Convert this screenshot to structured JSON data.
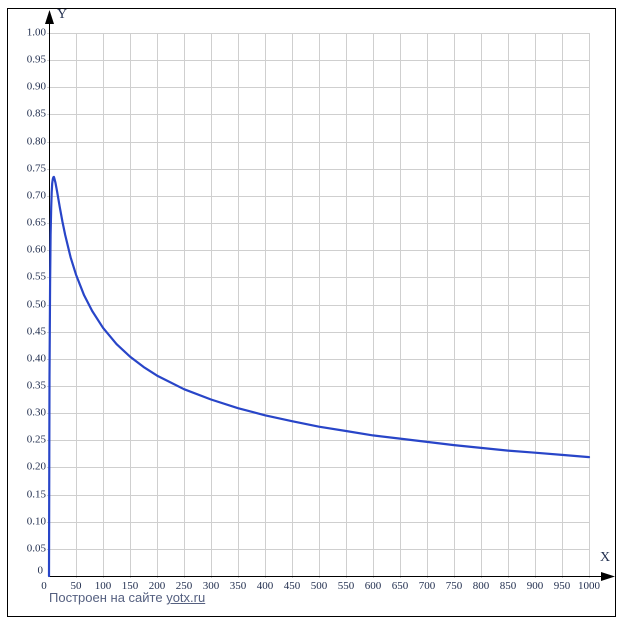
{
  "colors": {
    "background": "#ffffff",
    "frame_border": "#000000",
    "grid": "#cfcfcf",
    "axis": "#000000",
    "tick_text": "#233050",
    "curve": "#2845c8",
    "footer_text": "#556080",
    "footer_link": "#556080"
  },
  "chart_data": {
    "type": "line",
    "title": "",
    "grid": true,
    "x_axis": {
      "label": "X",
      "min": 0,
      "max": 1000,
      "grid_step": 50,
      "ticks": [
        {
          "v": 0,
          "label": "0"
        },
        {
          "v": 50,
          "label": "50"
        },
        {
          "v": 100,
          "label": "100"
        },
        {
          "v": 150,
          "label": "150"
        },
        {
          "v": 200,
          "label": "200"
        },
        {
          "v": 250,
          "label": "250"
        },
        {
          "v": 300,
          "label": "300"
        },
        {
          "v": 350,
          "label": "350"
        },
        {
          "v": 400,
          "label": "400"
        },
        {
          "v": 450,
          "label": "450"
        },
        {
          "v": 500,
          "label": "500"
        },
        {
          "v": 550,
          "label": "550"
        },
        {
          "v": 600,
          "label": "600"
        },
        {
          "v": 650,
          "label": "650"
        },
        {
          "v": 700,
          "label": "700"
        },
        {
          "v": 750,
          "label": "750"
        },
        {
          "v": 800,
          "label": "800"
        },
        {
          "v": 850,
          "label": "850"
        },
        {
          "v": 900,
          "label": "900"
        },
        {
          "v": 950,
          "label": "950"
        },
        {
          "v": 1000,
          "label": "1000"
        }
      ]
    },
    "y_axis": {
      "label": "Y",
      "min": 0,
      "max": 1.0,
      "grid_step": 0.05,
      "ticks": [
        {
          "v": 1.0,
          "label": "1.00"
        },
        {
          "v": 0.95,
          "label": "0.95"
        },
        {
          "v": 0.9,
          "label": "0.90"
        },
        {
          "v": 0.85,
          "label": "0.85"
        },
        {
          "v": 0.8,
          "label": "0.80"
        },
        {
          "v": 0.75,
          "label": "0.75"
        },
        {
          "v": 0.7,
          "label": "0.70"
        },
        {
          "v": 0.65,
          "label": "0.65"
        },
        {
          "v": 0.6,
          "label": "0.60"
        },
        {
          "v": 0.55,
          "label": "0.55"
        },
        {
          "v": 0.5,
          "label": "0.50"
        },
        {
          "v": 0.45,
          "label": "0.45"
        },
        {
          "v": 0.4,
          "label": "0.40"
        },
        {
          "v": 0.35,
          "label": "0.35"
        },
        {
          "v": 0.3,
          "label": "0.30"
        },
        {
          "v": 0.25,
          "label": "0.25"
        },
        {
          "v": 0.2,
          "label": "0.20"
        },
        {
          "v": 0.15,
          "label": "0.15"
        },
        {
          "v": 0.1,
          "label": "0.10"
        },
        {
          "v": 0.05,
          "label": "0.05"
        },
        {
          "v": 0,
          "label": "0"
        }
      ]
    },
    "series": [
      {
        "color": "#2845c8",
        "points": [
          [
            0,
            0
          ],
          [
            0.5,
            0.221
          ],
          [
            1,
            0.367
          ],
          [
            2,
            0.539
          ],
          [
            3,
            0.629
          ],
          [
            4,
            0.679
          ],
          [
            5,
            0.707
          ],
          [
            6,
            0.723
          ],
          [
            7,
            0.731
          ],
          [
            8,
            0.734
          ],
          [
            9,
            0.735
          ],
          [
            10,
            0.732
          ],
          [
            12,
            0.724
          ],
          [
            15,
            0.708
          ],
          [
            20,
            0.679
          ],
          [
            25,
            0.652
          ],
          [
            30,
            0.628
          ],
          [
            40,
            0.587
          ],
          [
            50,
            0.555
          ],
          [
            65,
            0.517
          ],
          [
            80,
            0.488
          ],
          [
            100,
            0.457
          ],
          [
            125,
            0.427
          ],
          [
            150,
            0.404
          ],
          [
            175,
            0.385
          ],
          [
            200,
            0.369
          ],
          [
            250,
            0.344
          ],
          [
            300,
            0.325
          ],
          [
            350,
            0.309
          ],
          [
            400,
            0.296
          ],
          [
            450,
            0.285
          ],
          [
            500,
            0.275
          ],
          [
            550,
            0.267
          ],
          [
            600,
            0.259
          ],
          [
            650,
            0.253
          ],
          [
            700,
            0.247
          ],
          [
            750,
            0.241
          ],
          [
            800,
            0.236
          ],
          [
            850,
            0.231
          ],
          [
            900,
            0.227
          ],
          [
            950,
            0.223
          ],
          [
            1000,
            0.219
          ]
        ]
      }
    ]
  },
  "footer": {
    "text": "Построен на сайте",
    "link_text": "yotx.ru"
  }
}
